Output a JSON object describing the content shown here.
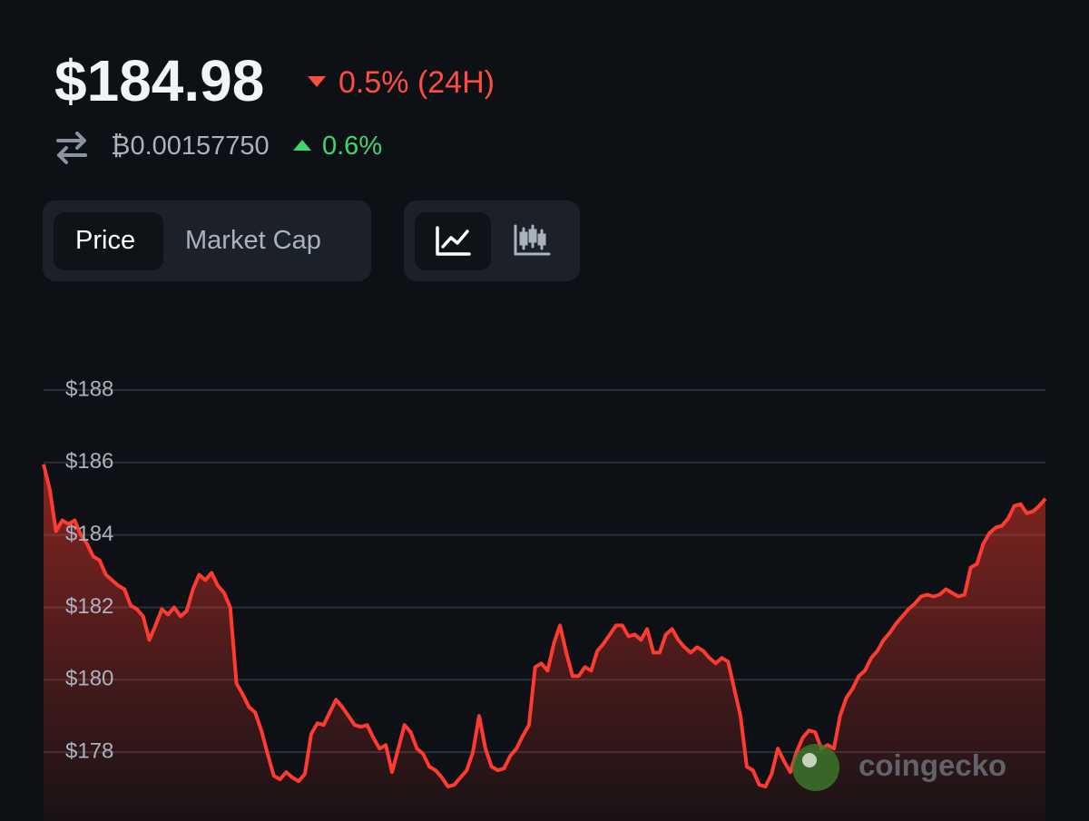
{
  "header": {
    "price": "$184.98",
    "change_24h": "0.5% (24H)",
    "btc_price": "₿0.00157750",
    "btc_change": "0.6%"
  },
  "tabs": [
    "Price",
    "Market Cap"
  ],
  "watermark": "coingecko",
  "chart_data": {
    "type": "area",
    "color": "#ff3b30",
    "grid": true,
    "ylim": [
      176.1,
      189
    ],
    "yticks": [
      {
        "value": 178,
        "label": "$178"
      },
      {
        "value": 180,
        "label": "$180"
      },
      {
        "value": 182,
        "label": "$182"
      },
      {
        "value": 184,
        "label": "$184"
      },
      {
        "value": 186,
        "label": "$186"
      },
      {
        "value": 188,
        "label": "$188"
      }
    ],
    "values": [
      185.95,
      185.25,
      184.1,
      184.4,
      184.3,
      184.4,
      184.0,
      183.75,
      183.4,
      183.3,
      182.9,
      182.75,
      182.6,
      182.5,
      182.05,
      181.95,
      181.75,
      181.1,
      181.5,
      181.95,
      181.8,
      182.0,
      181.75,
      181.9,
      182.5,
      182.9,
      182.75,
      182.95,
      182.6,
      182.4,
      182.0,
      179.9,
      179.6,
      179.25,
      179.1,
      178.6,
      177.95,
      177.35,
      177.25,
      177.45,
      177.3,
      177.2,
      177.4,
      178.5,
      178.8,
      178.75,
      179.1,
      179.45,
      179.25,
      179.0,
      178.75,
      178.7,
      178.75,
      178.4,
      178.1,
      178.2,
      177.45,
      178.1,
      178.75,
      178.55,
      178.1,
      177.95,
      177.6,
      177.5,
      177.3,
      177.05,
      177.1,
      177.3,
      177.5,
      178.0,
      179.0,
      178.1,
      177.6,
      177.5,
      177.55,
      177.9,
      178.1,
      178.45,
      178.75,
      180.35,
      180.45,
      180.25,
      181.0,
      181.5,
      180.75,
      180.1,
      180.1,
      180.35,
      180.25,
      180.8,
      181.0,
      181.25,
      181.5,
      181.5,
      181.2,
      181.25,
      181.1,
      181.4,
      180.75,
      180.75,
      181.25,
      181.4,
      181.1,
      180.9,
      180.75,
      180.9,
      180.8,
      180.6,
      180.45,
      180.6,
      180.5,
      179.75,
      179.0,
      177.6,
      177.5,
      177.1,
      177.05,
      177.4,
      178.1,
      177.75,
      177.45,
      178.0,
      178.4,
      178.6,
      178.55,
      178.1,
      178.2,
      178.1,
      179.0,
      179.5,
      179.75,
      180.1,
      180.25,
      180.6,
      180.8,
      181.1,
      181.3,
      181.55,
      181.75,
      181.95,
      182.1,
      182.3,
      182.35,
      182.3,
      182.35,
      182.5,
      182.4,
      182.3,
      182.35,
      183.1,
      183.2,
      183.75,
      184.05,
      184.2,
      184.25,
      184.45,
      184.8,
      184.85,
      184.6,
      184.65,
      184.8,
      185.0
    ]
  }
}
